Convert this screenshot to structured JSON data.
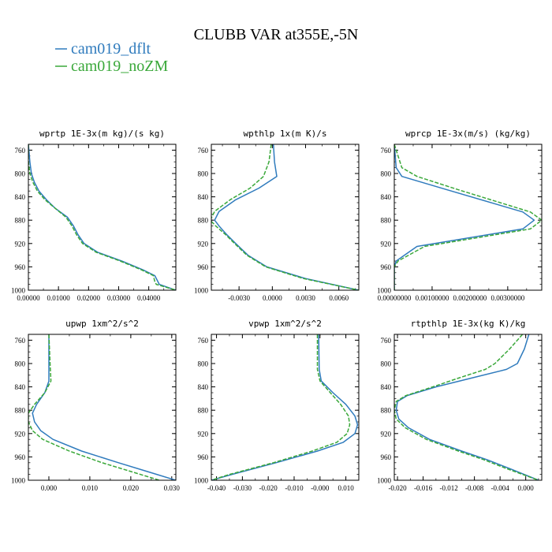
{
  "title": "CLUBB VAR at355E,-5N",
  "legend": [
    {
      "label": "cam019_dflt",
      "color": "#2f7bbd",
      "dash": false
    },
    {
      "label": "cam019_noZM",
      "color": "#3aa83a",
      "dash": true
    }
  ],
  "chart_data": [
    {
      "type": "line",
      "title": "wprtp  1E-3x(m kg)/(s kg)",
      "xlim": [
        0,
        0.049
      ],
      "ylim": [
        1000,
        750
      ],
      "xticks": [
        0,
        0.01,
        0.02,
        0.03,
        0.04
      ],
      "xticklabels": [
        "0.00000",
        "0.01000",
        "0.02000",
        "0.03000",
        "0.04000"
      ],
      "yticks": [
        760,
        800,
        840,
        880,
        920,
        960,
        1000
      ],
      "series": [
        {
          "name": "cam019_dflt",
          "y": [
            750,
            780,
            800,
            815,
            830,
            845,
            860,
            875,
            890,
            905,
            920,
            935,
            950,
            965,
            975,
            985,
            990,
            1000
          ],
          "x": [
            0.0,
            0.0005,
            0.001,
            0.002,
            0.0035,
            0.006,
            0.009,
            0.013,
            0.015,
            0.0165,
            0.0185,
            0.023,
            0.031,
            0.038,
            0.042,
            0.043,
            0.0435,
            0.049
          ]
        },
        {
          "name": "cam019_noZM",
          "y": [
            750,
            780,
            800,
            815,
            830,
            845,
            860,
            875,
            890,
            905,
            920,
            935,
            950,
            965,
            975,
            985,
            990,
            1000
          ],
          "x": [
            0.0,
            0.0,
            0.0005,
            0.0015,
            0.003,
            0.0055,
            0.009,
            0.0125,
            0.0145,
            0.016,
            0.018,
            0.0225,
            0.0305,
            0.0375,
            0.0415,
            0.042,
            0.0425,
            0.049
          ]
        }
      ]
    },
    {
      "type": "line",
      "title": "wpthlp  1x(m K)/s",
      "xlim": [
        -0.0055,
        0.0078
      ],
      "ylim": [
        1000,
        750
      ],
      "xticks": [
        -0.003,
        0,
        0.003,
        0.006
      ],
      "xticklabels": [
        "-0.0030",
        "0.0000",
        "0.0030",
        "0.0060"
      ],
      "yticks": [
        760,
        800,
        840,
        880,
        920,
        960,
        1000
      ],
      "series": [
        {
          "name": "cam019_dflt",
          "y": [
            750,
            780,
            805,
            825,
            845,
            865,
            880,
            890,
            905,
            920,
            940,
            960,
            980,
            1000
          ],
          "x": [
            0.0001,
            0.0002,
            0.0004,
            -0.0012,
            -0.0033,
            -0.0048,
            -0.0052,
            -0.0048,
            -0.0041,
            -0.0033,
            -0.0022,
            -0.0005,
            0.003,
            0.0078
          ]
        },
        {
          "name": "cam019_noZM",
          "y": [
            750,
            780,
            805,
            825,
            845,
            865,
            880,
            890,
            905,
            920,
            940,
            960,
            980,
            1000
          ],
          "x": [
            -0.0001,
            -0.0003,
            -0.0008,
            -0.002,
            -0.0038,
            -0.0052,
            -0.0056,
            -0.0051,
            -0.0042,
            -0.0034,
            -0.0023,
            -0.0006,
            0.0028,
            0.0078
          ]
        }
      ]
    },
    {
      "type": "line",
      "title": "wprcp  1E-3x(m/s) (kg/kg)",
      "xlim": [
        0,
        0.0039
      ],
      "ylim": [
        1000,
        750
      ],
      "xticks": [
        0,
        0.001,
        0.002,
        0.003
      ],
      "xticklabels": [
        "0.00000000",
        "0.00100000",
        "0.00200000",
        "0.00300000"
      ],
      "yticks": [
        760,
        800,
        840,
        880,
        920,
        960,
        1000
      ],
      "series": [
        {
          "name": "cam019_dflt",
          "y": [
            750,
            790,
            805,
            828,
            866,
            880,
            895,
            925,
            950,
            960,
            1000
          ],
          "x": [
            0.0,
            5e-05,
            0.0002,
            0.0014,
            0.0034,
            0.0037,
            0.0034,
            0.0006,
            5e-05,
            0.0,
            0.0
          ]
        },
        {
          "name": "cam019_noZM",
          "y": [
            750,
            790,
            805,
            828,
            866,
            880,
            895,
            925,
            950,
            960,
            1000
          ],
          "x": [
            0.0,
            0.0002,
            0.0006,
            0.0017,
            0.0036,
            0.0039,
            0.0036,
            0.0008,
            0.0001,
            0.0,
            0.0
          ]
        }
      ]
    },
    {
      "type": "line",
      "title": "upwp  1xm^2/s^2",
      "xlim": [
        -0.005,
        0.031
      ],
      "ylim": [
        1000,
        750
      ],
      "xticks": [
        0,
        0.01,
        0.02,
        0.03
      ],
      "xticklabels": [
        "0.000",
        "0.010",
        "0.020",
        "0.030"
      ],
      "yticks": [
        760,
        800,
        840,
        880,
        920,
        960,
        1000
      ],
      "series": [
        {
          "name": "cam019_dflt",
          "y": [
            750,
            800,
            830,
            850,
            870,
            885,
            900,
            915,
            930,
            950,
            970,
            985,
            1000
          ],
          "x": [
            0.0,
            0.0,
            0.0,
            -0.001,
            -0.003,
            -0.004,
            -0.0035,
            -0.002,
            0.001,
            0.008,
            0.017,
            0.024,
            0.031
          ]
        },
        {
          "name": "cam019_noZM",
          "y": [
            750,
            800,
            830,
            850,
            870,
            885,
            900,
            915,
            930,
            950,
            970,
            985,
            1000
          ],
          "x": [
            0.0,
            0.0003,
            0.0005,
            -0.001,
            -0.0035,
            -0.005,
            -0.005,
            -0.004,
            -0.0015,
            0.005,
            0.013,
            0.02,
            0.027
          ]
        }
      ]
    },
    {
      "type": "line",
      "title": "vpwp  1xm^2/s^2",
      "xlim": [
        -0.042,
        0.015
      ],
      "ylim": [
        1000,
        750
      ],
      "xticks": [
        -0.04,
        -0.03,
        -0.02,
        -0.01,
        0,
        0.01
      ],
      "xticklabels": [
        "-0.040",
        "-0.030",
        "-0.020",
        "-0.010",
        "-0.000",
        "0.010"
      ],
      "yticks": [
        760,
        800,
        840,
        880,
        920,
        960,
        1000
      ],
      "series": [
        {
          "name": "cam019_dflt",
          "y": [
            750,
            810,
            830,
            850,
            870,
            890,
            905,
            920,
            935,
            950,
            970,
            990,
            1000
          ],
          "x": [
            -0.0005,
            -0.0003,
            0.0005,
            0.005,
            0.01,
            0.0135,
            0.0145,
            0.0135,
            0.009,
            -0.001,
            -0.017,
            -0.034,
            -0.042
          ]
        },
        {
          "name": "cam019_noZM",
          "y": [
            750,
            810,
            830,
            850,
            870,
            890,
            905,
            920,
            935,
            950,
            970,
            990,
            1000
          ],
          "x": [
            -0.001,
            -0.001,
            0.0,
            0.004,
            0.008,
            0.011,
            0.0115,
            0.0105,
            0.0065,
            -0.003,
            -0.018,
            -0.035,
            -0.042
          ]
        }
      ]
    },
    {
      "type": "line",
      "title": "rtpthlp  1E-3x(kg K)/kg",
      "xlim": [
        -0.0205,
        0.0025
      ],
      "ylim": [
        1000,
        750
      ],
      "xticks": [
        -0.02,
        -0.016,
        -0.012,
        -0.008,
        -0.004,
        0
      ],
      "xticklabels": [
        "-0.020",
        "-0.016",
        "-0.012",
        "-0.008",
        "-0.004",
        "0.000"
      ],
      "yticks": [
        760,
        800,
        840,
        880,
        920,
        960,
        1000
      ],
      "series": [
        {
          "name": "cam019_dflt",
          "y": [
            750,
            775,
            800,
            810,
            825,
            840,
            855,
            865,
            880,
            895,
            910,
            930,
            950,
            965,
            980,
            1000
          ],
          "x": [
            0.0005,
            -0.0002,
            -0.0013,
            -0.003,
            -0.0085,
            -0.014,
            -0.0185,
            -0.02,
            -0.0202,
            -0.0198,
            -0.0183,
            -0.015,
            -0.01,
            -0.006,
            -0.0025,
            0.002
          ]
        },
        {
          "name": "cam019_noZM",
          "y": [
            750,
            775,
            800,
            810,
            825,
            840,
            855,
            865,
            880,
            895,
            910,
            930,
            950,
            965,
            980,
            1000
          ],
          "x": [
            -0.0005,
            -0.0025,
            -0.0048,
            -0.0063,
            -0.0105,
            -0.0145,
            -0.0187,
            -0.0202,
            -0.0205,
            -0.0202,
            -0.0188,
            -0.0155,
            -0.0105,
            -0.0065,
            -0.003,
            0.002
          ]
        }
      ]
    }
  ]
}
